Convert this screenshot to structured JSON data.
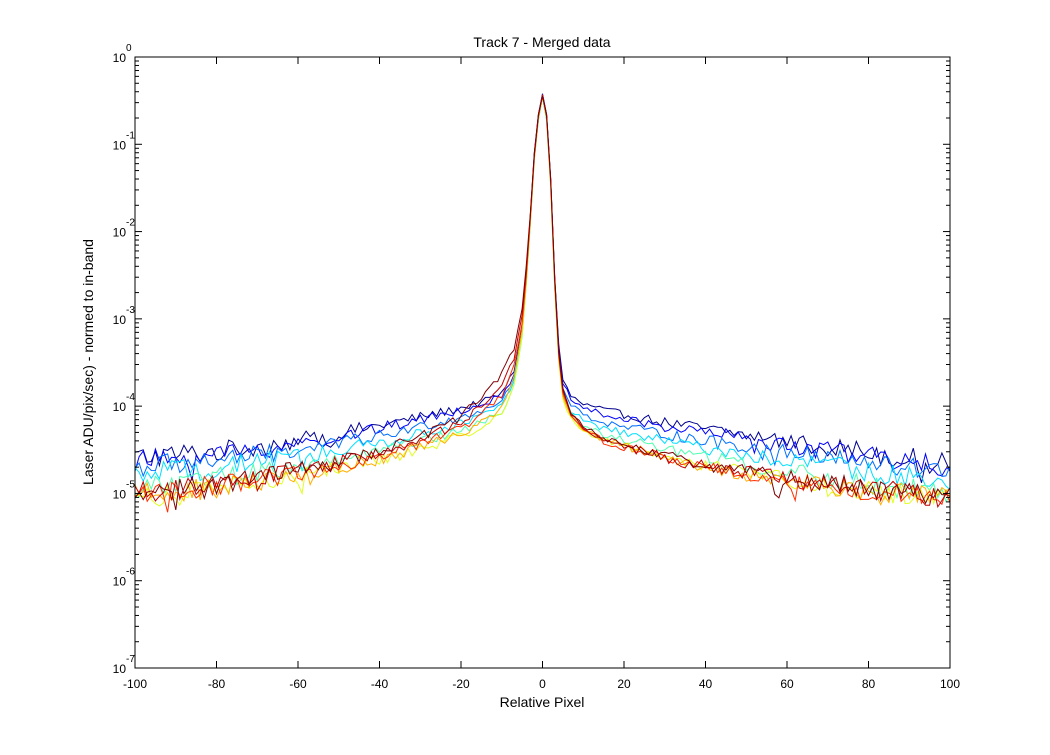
{
  "chart_data": {
    "type": "line",
    "title": "Track 7 - Merged data",
    "xlabel": "Relative Pixel",
    "ylabel": "Laser ADU/pix/sec) - normed to in-band",
    "xlim": [
      -100,
      100
    ],
    "ylim": [
      1e-07,
      1
    ],
    "yscale": "log",
    "grid": false,
    "x_ticks": [
      -100,
      -80,
      -60,
      -40,
      -20,
      0,
      20,
      40,
      60,
      80,
      100
    ],
    "y_ticks": [
      {
        "value": 1,
        "base": "10",
        "exp": "0"
      },
      {
        "value": 0.1,
        "base": "10",
        "exp": "-1"
      },
      {
        "value": 0.01,
        "base": "10",
        "exp": "-2"
      },
      {
        "value": 0.001,
        "base": "10",
        "exp": "-3"
      },
      {
        "value": 0.0001,
        "base": "10",
        "exp": "-4"
      },
      {
        "value": 1e-05,
        "base": "10",
        "exp": "-5"
      },
      {
        "value": 1e-06,
        "base": "10",
        "exp": "-6"
      },
      {
        "value": 1e-07,
        "base": "10",
        "exp": "-7"
      }
    ],
    "profile_x": [
      -100,
      -80,
      -60,
      -40,
      -30,
      -20,
      -15,
      -10,
      -7,
      -5,
      -4,
      -3,
      -2,
      -1,
      0,
      1,
      2,
      3,
      4,
      5,
      7,
      10,
      15,
      20,
      30,
      40,
      60,
      80,
      100
    ],
    "series": [
      {
        "color": "#00008f",
        "values": [
          2.6e-05,
          3e-05,
          4e-05,
          6e-05,
          7.5e-05,
          9.5e-05,
          0.00011,
          0.00014,
          0.00025,
          0.0008,
          0.003,
          0.015,
          0.08,
          0.22,
          0.38,
          0.22,
          0.04,
          0.003,
          0.0005,
          0.0002,
          0.00013,
          0.000105,
          9e-05,
          8e-05,
          6.5e-05,
          5.5e-05,
          4e-05,
          3e-05,
          2.1e-05
        ]
      },
      {
        "color": "#0000ff",
        "values": [
          2.3e-05,
          2.8e-05,
          3.6e-05,
          5.5e-05,
          7e-05,
          9e-05,
          0.000105,
          0.00013,
          0.00023,
          0.00075,
          0.0028,
          0.014,
          0.075,
          0.21,
          0.37,
          0.21,
          0.038,
          0.0028,
          0.00045,
          0.00018,
          0.00012,
          9.5e-05,
          8e-05,
          7e-05,
          5.8e-05,
          5e-05,
          3.6e-05,
          2.7e-05,
          1.9e-05
        ]
      },
      {
        "color": "#006fff",
        "values": [
          2e-05,
          2.4e-05,
          3.1e-05,
          4.5e-05,
          5.8e-05,
          7.5e-05,
          9e-05,
          0.000115,
          0.00021,
          0.0007,
          0.0026,
          0.013,
          0.07,
          0.2,
          0.36,
          0.2,
          0.036,
          0.0026,
          0.0004,
          0.00016,
          0.000105,
          8e-05,
          6.5e-05,
          5.8e-05,
          4.8e-05,
          4e-05,
          2.9e-05,
          2.2e-05,
          1.7e-05
        ]
      },
      {
        "color": "#00dfff",
        "values": [
          1.6e-05,
          2e-05,
          2.6e-05,
          3.8e-05,
          4.8e-05,
          6.3e-05,
          7.8e-05,
          0.0001,
          0.00019,
          0.00065,
          0.0025,
          0.0125,
          0.068,
          0.19,
          0.35,
          0.19,
          0.034,
          0.0024,
          0.00036,
          0.00014,
          9e-05,
          6.8e-05,
          5.6e-05,
          4.9e-05,
          4e-05,
          3.3e-05,
          2.4e-05,
          1.8e-05,
          1.4e-05
        ]
      },
      {
        "color": "#4fffaf",
        "values": [
          1.2e-05,
          1.5e-05,
          2e-05,
          3e-05,
          3.9e-05,
          5.2e-05,
          6.5e-05,
          8.5e-05,
          0.00017,
          0.00062,
          0.0024,
          0.012,
          0.066,
          0.19,
          0.35,
          0.19,
          0.033,
          0.0023,
          0.00033,
          0.00013,
          8e-05,
          5.9e-05,
          4.7e-05,
          4.1e-05,
          3.3e-05,
          2.6e-05,
          1.8e-05,
          1.3e-05,
          1e-05
        ]
      },
      {
        "color": "#dfff1f",
        "values": [
          9e-06,
          1.1e-05,
          1.55e-05,
          2.4e-05,
          3.2e-05,
          4.5e-05,
          5.8e-05,
          8e-05,
          0.00017,
          0.00065,
          0.0025,
          0.0125,
          0.068,
          0.2,
          0.36,
          0.2,
          0.033,
          0.0023,
          0.00032,
          0.00012,
          7.2e-05,
          5.2e-05,
          4.1e-05,
          3.5e-05,
          2.7e-05,
          2.1e-05,
          1.45e-05,
          1.05e-05,
          8e-06
        ]
      },
      {
        "color": "#ffaf00",
        "values": [
          9.5e-06,
          1.15e-05,
          1.6e-05,
          2.5e-05,
          3.4e-05,
          4.8e-05,
          6.5e-05,
          9.5e-05,
          0.00021,
          0.00075,
          0.0027,
          0.013,
          0.07,
          0.2,
          0.35,
          0.2,
          0.035,
          0.0025,
          0.00035,
          0.00013,
          7.5e-05,
          5.3e-05,
          4.1e-05,
          3.5e-05,
          2.6e-05,
          2e-05,
          1.4e-05,
          1.05e-05,
          8.5e-06
        ]
      },
      {
        "color": "#ff2f00",
        "values": [
          1e-05,
          1.2e-05,
          1.7e-05,
          2.7e-05,
          3.7e-05,
          5.5e-05,
          8e-05,
          0.00013,
          0.00028,
          0.0009,
          0.003,
          0.014,
          0.072,
          0.21,
          0.37,
          0.21,
          0.037,
          0.0027,
          0.00038,
          0.00014,
          7.8e-05,
          5.4e-05,
          4e-05,
          3.4e-05,
          2.6e-05,
          2e-05,
          1.4e-05,
          1.1e-05,
          9e-06
        ]
      },
      {
        "color": "#bf0000",
        "values": [
          1.05e-05,
          1.25e-05,
          1.8e-05,
          2.9e-05,
          4e-05,
          6.5e-05,
          0.0001,
          0.00017,
          0.00036,
          0.0011,
          0.0035,
          0.015,
          0.075,
          0.21,
          0.36,
          0.21,
          0.038,
          0.0028,
          0.0004,
          0.00015,
          8e-05,
          5.5e-05,
          4.1e-05,
          3.4e-05,
          2.6e-05,
          2e-05,
          1.45e-05,
          1.1e-05,
          9e-06
        ]
      },
      {
        "color": "#800000",
        "values": [
          1.1e-05,
          1.3e-05,
          1.9e-05,
          3.1e-05,
          4.4e-05,
          7.5e-05,
          0.00013,
          0.00023,
          0.00046,
          0.0013,
          0.004,
          0.016,
          0.078,
          0.22,
          0.36,
          0.22,
          0.04,
          0.003,
          0.00042,
          0.00016,
          8.5e-05,
          5.7e-05,
          4.2e-05,
          3.5e-05,
          2.7e-05,
          2.1e-05,
          1.5e-05,
          1.15e-05,
          9.5e-06
        ]
      }
    ]
  }
}
